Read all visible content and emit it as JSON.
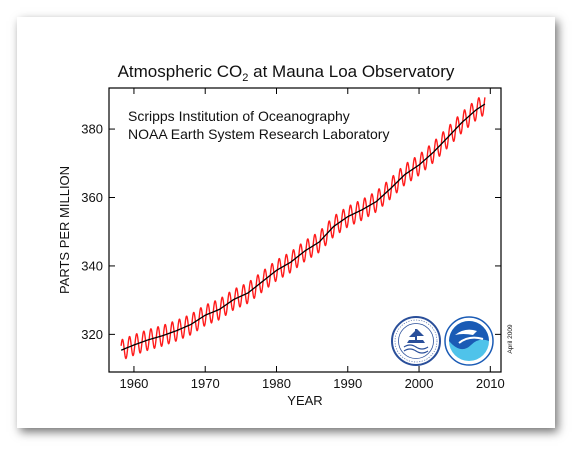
{
  "colors": {
    "seasonal_line": "#ff1a1a",
    "trend_line": "#000000",
    "frame": "#000000",
    "scripps_seal": "#2a4f9a",
    "noaa_logo_blue": "#1a5bb5",
    "noaa_logo_cyan": "#4fc3ea"
  },
  "icons": [
    "scripps-seal-icon",
    "noaa-logo-icon"
  ],
  "chart_data": {
    "type": "line",
    "title_main": "Atmospheric CO",
    "title_sub": "2",
    "title_rest": " at Mauna Loa Observatory",
    "annotation_lines": [
      "Scripps Institution of Oceanography",
      "NOAA Earth System Research Laboratory"
    ],
    "stamp": "April 2009",
    "xlabel": "YEAR",
    "ylabel": "PARTS PER MILLION",
    "xlim": [
      1956.5,
      2011.5
    ],
    "ylim": [
      309,
      392
    ],
    "xticks": [
      1960,
      1970,
      1980,
      1990,
      2000,
      2010
    ],
    "yticks": [
      320,
      340,
      360,
      380
    ],
    "grid": false,
    "legend": "none",
    "seasonal_amplitude": 3.0,
    "series": [
      {
        "name": "",
        "style": "seasonal",
        "x_start": 1958.2,
        "x_end": 2009.25,
        "trend_points": [
          [
            1958,
            315.2
          ],
          [
            1960,
            316.9
          ],
          [
            1962,
            318.4
          ],
          [
            1964,
            319.6
          ],
          [
            1966,
            321.1
          ],
          [
            1968,
            322.9
          ],
          [
            1970,
            325.6
          ],
          [
            1972,
            327.3
          ],
          [
            1974,
            330.2
          ],
          [
            1976,
            332.1
          ],
          [
            1978,
            335.4
          ],
          [
            1980,
            338.7
          ],
          [
            1982,
            341.1
          ],
          [
            1984,
            344.4
          ],
          [
            1986,
            347.0
          ],
          [
            1988,
            351.5
          ],
          [
            1990,
            354.4
          ],
          [
            1992,
            356.4
          ],
          [
            1994,
            358.8
          ],
          [
            1996,
            362.6
          ],
          [
            1998,
            366.7
          ],
          [
            2000,
            369.5
          ],
          [
            2002,
            373.2
          ],
          [
            2004,
            377.5
          ],
          [
            2006,
            381.9
          ],
          [
            2008,
            385.6
          ],
          [
            2009.3,
            387.4
          ]
        ]
      },
      {
        "name": "",
        "style": "trend",
        "x_start": 1958.2,
        "x_end": 2009.25,
        "trend_points": [
          [
            1958,
            315.2
          ],
          [
            1960,
            316.9
          ],
          [
            1962,
            318.4
          ],
          [
            1964,
            319.6
          ],
          [
            1966,
            321.1
          ],
          [
            1968,
            322.9
          ],
          [
            1970,
            325.6
          ],
          [
            1972,
            327.3
          ],
          [
            1974,
            330.2
          ],
          [
            1976,
            332.1
          ],
          [
            1978,
            335.4
          ],
          [
            1980,
            338.7
          ],
          [
            1982,
            341.1
          ],
          [
            1984,
            344.4
          ],
          [
            1986,
            347.0
          ],
          [
            1988,
            351.5
          ],
          [
            1990,
            354.4
          ],
          [
            1992,
            356.4
          ],
          [
            1994,
            358.8
          ],
          [
            1996,
            362.6
          ],
          [
            1998,
            366.7
          ],
          [
            2000,
            369.5
          ],
          [
            2002,
            373.2
          ],
          [
            2004,
            377.5
          ],
          [
            2006,
            381.9
          ],
          [
            2008,
            385.6
          ],
          [
            2009.3,
            387.4
          ]
        ]
      }
    ]
  }
}
